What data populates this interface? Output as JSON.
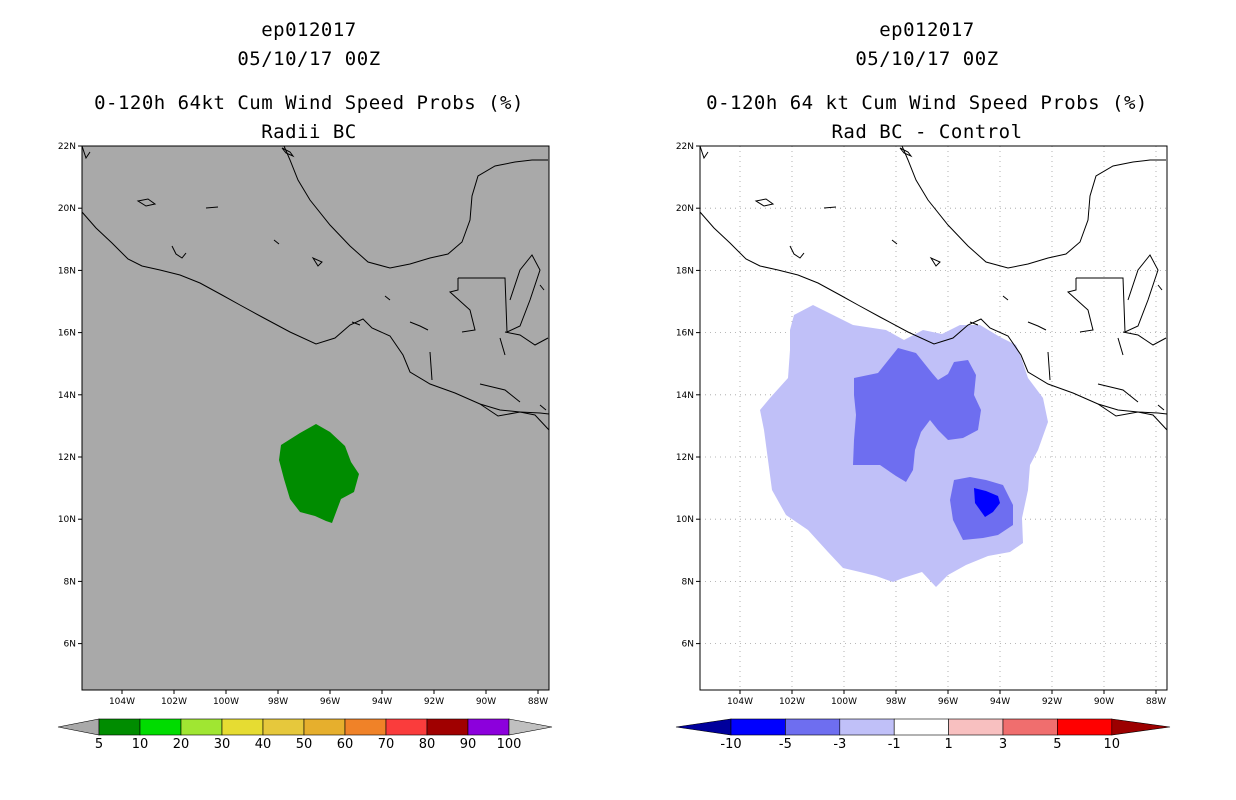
{
  "left_panel": {
    "storm": "ep012017",
    "datetime": "05/10/17 00Z",
    "product": "0-120h 64kt Cum Wind Speed Probs (%)",
    "subtitle": "Radii BC",
    "background_color": "#a9a9a9",
    "colorbar": {
      "labels": [
        "5",
        "10",
        "20",
        "30",
        "40",
        "50",
        "60",
        "70",
        "80",
        "90",
        "100"
      ],
      "colors": [
        "#008c00",
        "#00dc00",
        "#a0e632",
        "#e6dc32",
        "#e6c83c",
        "#e6af2d",
        "#f08228",
        "#fa3c3c",
        "#a00000",
        "#8c00dc",
        "#c0c0c0"
      ]
    }
  },
  "right_panel": {
    "storm": "ep012017",
    "datetime": "05/10/17 00Z",
    "product": "0-120h 64 kt Cum Wind Speed Probs (%)",
    "subtitle": "Rad BC - Control",
    "background_color": "#ffffff",
    "colorbar": {
      "labels": [
        "-10",
        "-5",
        "-3",
        "-1",
        "1",
        "3",
        "5",
        "10"
      ],
      "colors": [
        "#00009c",
        "#0000ff",
        "#6e6ef0",
        "#c0c0f8",
        "#ffffff",
        "#f8c0c0",
        "#f06e6e",
        "#ff0000",
        "#9c0000"
      ]
    }
  },
  "axes": {
    "lat_labels": [
      "22N",
      "20N",
      "18N",
      "16N",
      "14N",
      "12N",
      "10N",
      "8N",
      "6N"
    ],
    "lon_labels": [
      "104W",
      "102W",
      "100W",
      "98W",
      "96W",
      "94W",
      "92W",
      "90W",
      "88W"
    ]
  },
  "chart_data": [
    {
      "type": "map",
      "title": "0-120h 64kt Cum Wind Speed Probs (%) - Radii BC",
      "region": {
        "lon": [
          -106.2,
          -88.3
        ],
        "lat": [
          4.5,
          22
        ]
      },
      "filled_contours": [
        {
          "level": "5-10 %",
          "color": "#008c00",
          "approx_center": {
            "lon": -96.8,
            "lat": 11.6
          }
        }
      ]
    },
    {
      "type": "map",
      "title": "0-120h 64 kt Cum Wind Speed Probs (%) - Rad BC - Control",
      "region": {
        "lon": [
          -106.2,
          -88.3
        ],
        "lat": [
          4.5,
          22
        ]
      },
      "filled_contours": [
        {
          "level": "-3 to -1",
          "color": "#c0c0f8"
        },
        {
          "level": "-5 to -3",
          "color": "#6e6ef0"
        },
        {
          "level": "-10 to -5",
          "color": "#0000ff"
        }
      ]
    }
  ]
}
